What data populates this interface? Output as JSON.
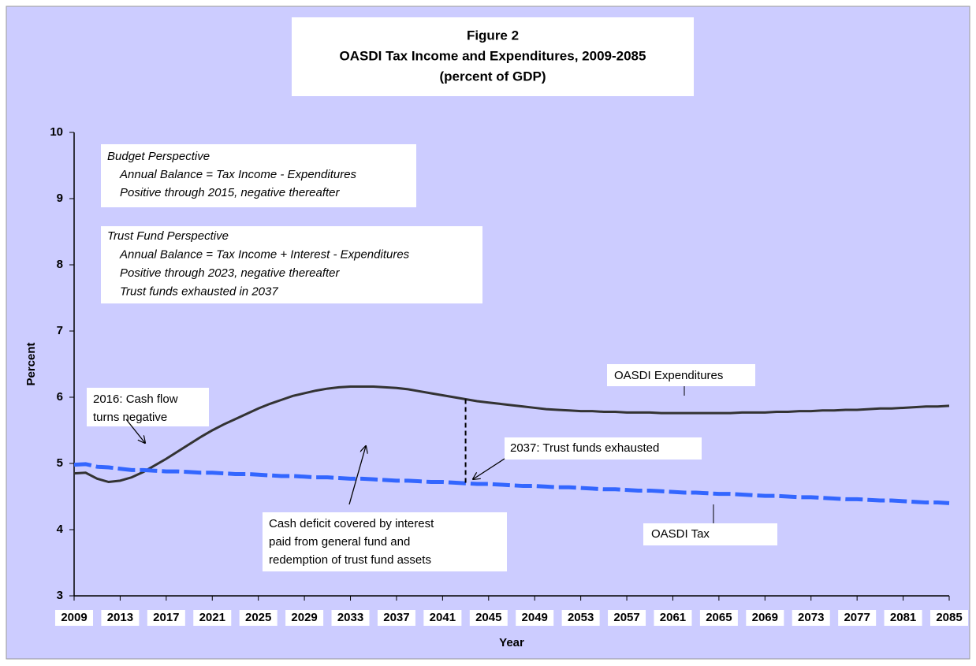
{
  "chart_data": {
    "type": "line",
    "title": [
      "Figure 2",
      "OASDI Tax Income and Expenditures, 2009-2085",
      "(percent of GDP)"
    ],
    "xlabel": "Year",
    "ylabel": "Percent",
    "x": [
      2009,
      2010,
      2011,
      2012,
      2013,
      2014,
      2015,
      2016,
      2017,
      2018,
      2019,
      2020,
      2021,
      2022,
      2023,
      2024,
      2025,
      2026,
      2027,
      2028,
      2029,
      2030,
      2031,
      2032,
      2033,
      2034,
      2035,
      2036,
      2037,
      2038,
      2039,
      2040,
      2041,
      2042,
      2043,
      2044,
      2045,
      2046,
      2047,
      2048,
      2049,
      2050,
      2051,
      2052,
      2053,
      2054,
      2055,
      2056,
      2057,
      2058,
      2059,
      2060,
      2061,
      2062,
      2063,
      2064,
      2065,
      2066,
      2067,
      2068,
      2069,
      2070,
      2071,
      2072,
      2073,
      2074,
      2075,
      2076,
      2077,
      2078,
      2079,
      2080,
      2081,
      2082,
      2083,
      2084,
      2085
    ],
    "series": [
      {
        "name": "OASDI Expenditures",
        "color": "#333333",
        "dash": false,
        "values": [
          4.85,
          4.86,
          4.77,
          4.72,
          4.74,
          4.79,
          4.87,
          4.97,
          5.07,
          5.18,
          5.29,
          5.4,
          5.5,
          5.59,
          5.67,
          5.75,
          5.83,
          5.9,
          5.96,
          6.02,
          6.06,
          6.1,
          6.13,
          6.15,
          6.16,
          6.16,
          6.16,
          6.15,
          6.14,
          6.12,
          6.09,
          6.06,
          6.03,
          6.0,
          5.97,
          5.94,
          5.92,
          5.9,
          5.88,
          5.86,
          5.84,
          5.82,
          5.81,
          5.8,
          5.79,
          5.79,
          5.78,
          5.78,
          5.77,
          5.77,
          5.77,
          5.76,
          5.76,
          5.76,
          5.76,
          5.76,
          5.76,
          5.76,
          5.77,
          5.77,
          5.77,
          5.78,
          5.78,
          5.79,
          5.79,
          5.8,
          5.8,
          5.81,
          5.81,
          5.82,
          5.83,
          5.83,
          5.84,
          5.85,
          5.86,
          5.86,
          5.87
        ]
      },
      {
        "name": "OASDI Tax",
        "color": "#3366ff",
        "dash": true,
        "values": [
          4.98,
          4.99,
          4.95,
          4.94,
          4.92,
          4.9,
          4.9,
          4.89,
          4.88,
          4.88,
          4.87,
          4.86,
          4.86,
          4.85,
          4.84,
          4.84,
          4.83,
          4.82,
          4.81,
          4.81,
          4.8,
          4.79,
          4.79,
          4.78,
          4.77,
          4.77,
          4.76,
          4.75,
          4.74,
          4.74,
          4.73,
          4.72,
          4.72,
          4.71,
          4.7,
          4.69,
          4.69,
          4.68,
          4.67,
          4.66,
          4.66,
          4.65,
          4.64,
          4.64,
          4.63,
          4.62,
          4.61,
          4.61,
          4.6,
          4.59,
          4.59,
          4.58,
          4.57,
          4.56,
          4.56,
          4.55,
          4.54,
          4.54,
          4.53,
          4.52,
          4.51,
          4.51,
          4.5,
          4.49,
          4.49,
          4.48,
          4.47,
          4.46,
          4.46,
          4.45,
          4.44,
          4.44,
          4.43,
          4.42,
          4.41,
          4.41,
          4.4
        ]
      }
    ],
    "xlim": [
      2009,
      2085
    ],
    "xticks": [
      2009,
      2013,
      2017,
      2021,
      2025,
      2029,
      2033,
      2037,
      2041,
      2045,
      2049,
      2053,
      2057,
      2061,
      2065,
      2069,
      2073,
      2077,
      2081,
      2085
    ],
    "ylim": [
      3,
      10
    ],
    "yticks": [
      3,
      4,
      5,
      6,
      7,
      8,
      9,
      10
    ],
    "grid": false,
    "annotations": [
      {
        "lines": [
          "Budget Perspective",
          "Annual Balance = Tax Income - Expenditures",
          "Positive through 2015, negative thereafter"
        ]
      },
      {
        "lines": [
          "Trust Fund Perspective",
          "Annual Balance = Tax Income + Interest - Expenditures",
          "Positive through 2023, negative thereafter",
          "Trust funds exhausted in 2037"
        ]
      },
      {
        "lines": [
          "2016: Cash flow",
          "turns negative"
        ]
      },
      {
        "lines": [
          "2037: Trust funds exhausted"
        ]
      },
      {
        "lines": [
          "Cash deficit covered by interest",
          "paid from general fund and",
          "redemption of trust fund assets"
        ]
      }
    ]
  }
}
